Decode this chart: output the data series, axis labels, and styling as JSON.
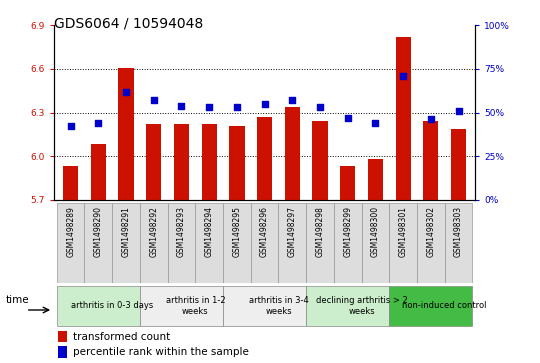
{
  "title": "GDS6064 / 10594048",
  "samples": [
    "GSM1498289",
    "GSM1498290",
    "GSM1498291",
    "GSM1498292",
    "GSM1498293",
    "GSM1498294",
    "GSM1498295",
    "GSM1498296",
    "GSM1498297",
    "GSM1498298",
    "GSM1498299",
    "GSM1498300",
    "GSM1498301",
    "GSM1498302",
    "GSM1498303"
  ],
  "bar_values": [
    5.93,
    6.08,
    6.61,
    6.22,
    6.22,
    6.22,
    6.21,
    6.27,
    6.34,
    6.24,
    5.93,
    5.98,
    6.82,
    6.24,
    6.19
  ],
  "dot_values": [
    42,
    44,
    62,
    57,
    54,
    53,
    53,
    55,
    57,
    53,
    47,
    44,
    71,
    46,
    51
  ],
  "ylim_left": [
    5.7,
    6.9
  ],
  "ylim_right": [
    0,
    100
  ],
  "yticks_left": [
    5.7,
    6.0,
    6.3,
    6.6,
    6.9
  ],
  "yticks_right": [
    0,
    25,
    50,
    75,
    100
  ],
  "bar_color": "#cc1100",
  "dot_color": "#0000cc",
  "bar_base": 5.7,
  "grid_lines": [
    6.0,
    6.3,
    6.6
  ],
  "groups": [
    {
      "label": "arthritis in 0-3 days",
      "start": 0,
      "end": 3,
      "color": "#cceecc"
    },
    {
      "label": "arthritis in 1-2\nweeks",
      "start": 3,
      "end": 6,
      "color": "#eeeeee"
    },
    {
      "label": "arthritis in 3-4\nweeks",
      "start": 6,
      "end": 9,
      "color": "#eeeeee"
    },
    {
      "label": "declining arthritis > 2\nweeks",
      "start": 9,
      "end": 12,
      "color": "#cceecc"
    },
    {
      "label": "non-induced control",
      "start": 12,
      "end": 15,
      "color": "#44bb44"
    }
  ],
  "sample_bg_color": "#dddddd",
  "legend_bar_label": "transformed count",
  "legend_dot_label": "percentile rank within the sample",
  "title_fontsize": 10,
  "tick_fontsize": 6.5,
  "label_fontsize": 7.5
}
